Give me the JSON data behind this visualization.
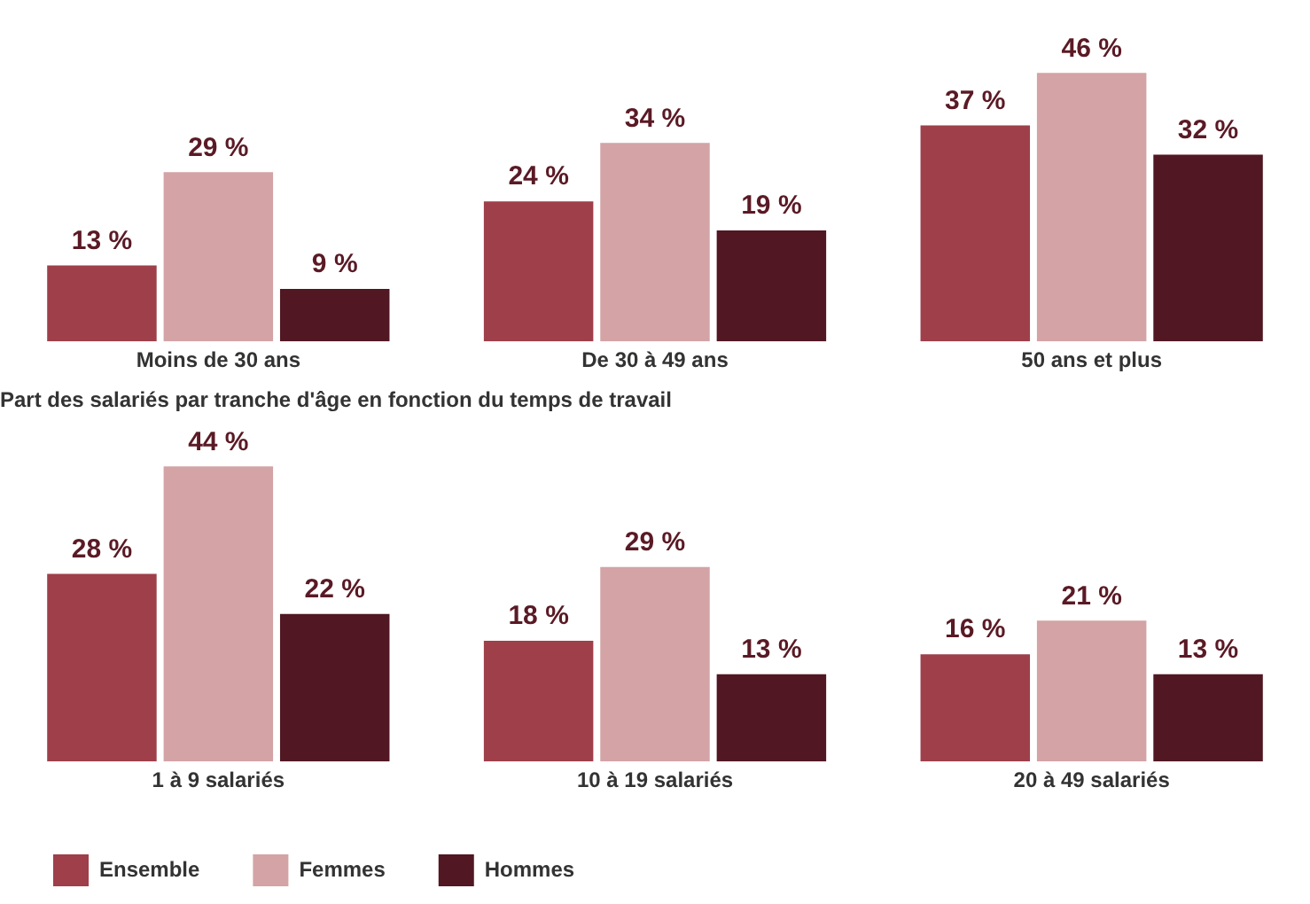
{
  "chart_data": [
    {
      "type": "bar",
      "categories": [
        "Moins de 30 ans",
        "De 30 à 49 ans",
        "50 ans et plus"
      ],
      "series": [
        {
          "color": "#9e3f4a",
          "values": [
            13,
            24,
            37
          ],
          "value_labels": [
            "13 %",
            "24 %",
            "37 %"
          ]
        },
        {
          "color": "#d3a3a5",
          "values": [
            29,
            34,
            46
          ],
          "value_labels": [
            "29 %",
            "34 %",
            "46 %"
          ]
        },
        {
          "color": "#511722",
          "values": [
            9,
            19,
            32
          ],
          "value_labels": [
            "9 %",
            "19 %",
            "32 %"
          ]
        }
      ],
      "tick_labels": "x",
      "grid": false,
      "legend": false
    },
    {
      "type": "bar",
      "title": "Part des salariés par tranche d'âge en fonction du temps de travail",
      "categories": [
        "1 à 9 salariés",
        "10 à 19 salariés",
        "20 à 49 salariés"
      ],
      "series": [
        {
          "name": "Ensemble",
          "color": "#9e3f4a",
          "values": [
            28,
            18,
            16
          ],
          "value_labels": [
            "28 %",
            "18 %",
            "16 %"
          ]
        },
        {
          "name": "Femmes",
          "color": "#d3a3a5",
          "values": [
            44,
            29,
            21
          ],
          "value_labels": [
            "44 %",
            "29 %",
            "21 %"
          ]
        },
        {
          "name": "Hommes",
          "color": "#511722",
          "values": [
            22,
            13,
            13
          ],
          "value_labels": [
            "22 %",
            "13 %",
            "13 %"
          ]
        }
      ],
      "tick_labels": "x",
      "grid": false,
      "legend": "bottom left"
    }
  ]
}
